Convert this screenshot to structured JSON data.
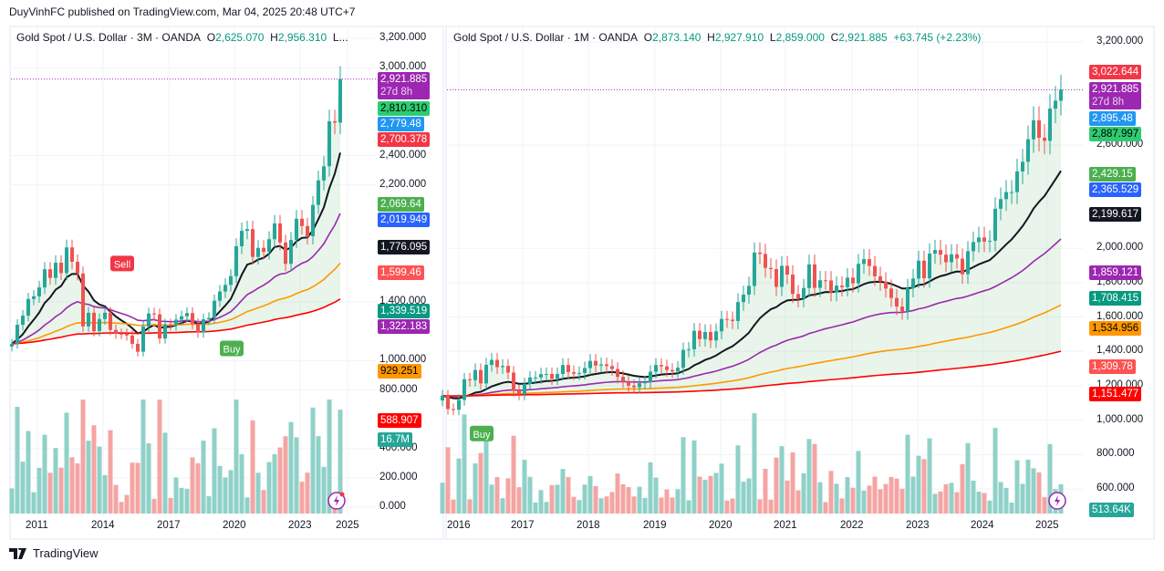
{
  "publisher_line": "DuyVinhFC published on TradingView.com, Mar 04, 2025 20:48 UTC+7",
  "footer": {
    "brand": "TradingView"
  },
  "colors": {
    "up": "#26a69a",
    "down": "#ef5350",
    "up_volume": "#8fd1c8",
    "down_volume": "#f4a5a3",
    "ema_fast": "#131722",
    "ema_mid": "#9c27b0",
    "ema_slow": "#ff9800",
    "ema_long": "#ff0000",
    "overlay": "#b57bd4",
    "current_price": "#9c27b0"
  },
  "icons": [
    "lightning-icon",
    "tradingview-logo-icon"
  ],
  "left": {
    "title": {
      "symbol": "Gold Spot / U.S. Dollar · 3M · OANDA",
      "o_key": "O",
      "o": "2,625.070",
      "h_key": "H",
      "h": "2,956.310",
      "rest": "L..."
    },
    "signals": [
      {
        "text": "Sell",
        "color": "#f23645",
        "index": 20,
        "price": 1660
      },
      {
        "text": "Buy",
        "color": "#4caf50",
        "index": 40,
        "price": 1080
      }
    ],
    "price_labels": [
      {
        "text": "2,921.885",
        "sub": "27d 8h",
        "bg": "#9c27b0",
        "fg": "#fff",
        "value": 2921.885
      },
      {
        "text": "2,810.310",
        "bg": "#2ecc71",
        "fg": "#000",
        "value": 2810.31
      },
      {
        "text": "2,779.48",
        "bg": "#2196f3",
        "fg": "#fff",
        "value": 2779.48
      },
      {
        "text": "2,700.378",
        "bg": "#f23645",
        "fg": "#fff",
        "value": 2700.378
      },
      {
        "text": "2,069.64",
        "bg": "#4caf50",
        "fg": "#fff",
        "value": 2069.64
      },
      {
        "text": "2,019.949",
        "bg": "#2962ff",
        "fg": "#fff",
        "value": 2019.949
      },
      {
        "text": "1,776.095",
        "bg": "#131722",
        "fg": "#fff",
        "value": 1776.095
      },
      {
        "text": "1,599.46",
        "bg": "#ff5252",
        "fg": "#fff",
        "value": 1599.46
      },
      {
        "text": "1,339.519",
        "bg": "#089981",
        "fg": "#fff",
        "value": 1339.519
      },
      {
        "text": "1,322.183",
        "bg": "#9c27b0",
        "fg": "#fff",
        "value": 1322.183
      },
      {
        "text": "929.251",
        "bg": "#ff9800",
        "fg": "#000",
        "value": 929.251
      },
      {
        "text": "588.907",
        "bg": "#ff0000",
        "fg": "#fff",
        "value": 588.907
      },
      {
        "text": "16.7M",
        "bg": "#26a69a",
        "fg": "#fff",
        "value": 460
      }
    ]
  },
  "right": {
    "title": {
      "symbol": "Gold Spot / U.S. Dollar · 1M · OANDA",
      "o_key": "O",
      "o": "2,873.140",
      "h_key": "H",
      "h": "2,927.910",
      "l_key": "L",
      "l": "2,859.000",
      "c_key": "C",
      "c": "2,921.885",
      "chg": "+63.745 (+2.23%)"
    },
    "signals": [
      {
        "text": "Buy",
        "color": "#4caf50",
        "index": 7,
        "price": 920
      }
    ],
    "price_labels": [
      {
        "text": "3,022.644",
        "bg": "#f23645",
        "fg": "#fff",
        "value": 3022.644
      },
      {
        "text": "2,921.885",
        "sub": "27d 8h",
        "bg": "#9c27b0",
        "fg": "#fff",
        "value": 2921.885
      },
      {
        "text": "2,895.48",
        "bg": "#2196f3",
        "fg": "#fff",
        "value": 2895.48
      },
      {
        "text": "2,887.997",
        "bg": "#2ecc71",
        "fg": "#000",
        "value": 2887.997
      },
      {
        "text": "2,429.15",
        "bg": "#4caf50",
        "fg": "#fff",
        "value": 2429.15
      },
      {
        "text": "2,365.529",
        "bg": "#2962ff",
        "fg": "#fff",
        "value": 2365.529
      },
      {
        "text": "2,199.617",
        "bg": "#131722",
        "fg": "#fff",
        "value": 2199.617
      },
      {
        "text": "1,859.121",
        "bg": "#9c27b0",
        "fg": "#fff",
        "value": 1859.121
      },
      {
        "text": "1,708.415",
        "bg": "#089981",
        "fg": "#fff",
        "value": 1708.415
      },
      {
        "text": "1,534.956",
        "bg": "#ff9800",
        "fg": "#000",
        "value": 1534.956
      },
      {
        "text": "1,309.78",
        "bg": "#ff5252",
        "fg": "#fff",
        "value": 1309.78
      },
      {
        "text": "1,151.477",
        "bg": "#ff0000",
        "fg": "#fff",
        "value": 1151.477
      },
      {
        "text": "513.64K",
        "bg": "#26a69a",
        "fg": "#fff",
        "value": 480
      }
    ]
  },
  "chart_data": [
    {
      "type": "candlestick",
      "interval": "3M",
      "start": "2010-Q1",
      "x_ticks": [
        "2011",
        "2014",
        "2017",
        "2020",
        "2023",
        "2025"
      ],
      "y_ticks": [
        "3,200.000",
        "3,000.000",
        "2,400.000",
        "2,200.000",
        "1,400.000",
        "1,000.000",
        "800.000",
        "400.000",
        "200.000",
        "0.000"
      ],
      "y_tick_values": [
        3200,
        3000,
        2400,
        2200,
        1400,
        1000,
        800,
        400,
        200,
        0
      ],
      "ylim": [
        0,
        3200
      ],
      "first_open": 1096,
      "closes": [
        1115,
        1245,
        1307,
        1421,
        1439,
        1500,
        1624,
        1565,
        1669,
        1598,
        1773,
        1675,
        1595,
        1234,
        1327,
        1202,
        1284,
        1327,
        1210,
        1184,
        1183,
        1172,
        1115,
        1061,
        1233,
        1322,
        1316,
        1151,
        1249,
        1242,
        1280,
        1303,
        1325,
        1252,
        1192,
        1282,
        1292,
        1409,
        1472,
        1517,
        1577,
        1781,
        1886,
        1898,
        1708,
        1770,
        1743,
        1829,
        1937,
        1807,
        1661,
        1824,
        1969,
        1919,
        1849,
        2063,
        2230,
        2327,
        2634,
        2625,
        2921.885
      ]
    },
    {
      "type": "candlestick",
      "interval": "1M",
      "start": "2015-10",
      "x_ticks": [
        "2016",
        "2017",
        "2018",
        "2019",
        "2020",
        "2021",
        "2022",
        "2023",
        "2024",
        "2025"
      ],
      "y_ticks": [
        "3,200.000",
        "2,600.000",
        "2,000.000",
        "1,800.000",
        "1,600.000",
        "1,400.000",
        "1,200.000",
        "1,000.000",
        "800.000",
        "600.000"
      ],
      "y_tick_values": [
        3200,
        2600,
        2000,
        1800,
        1600,
        1400,
        1200,
        1000,
        800,
        600
      ],
      "ylim": [
        500,
        3300
      ],
      "first_open": 1115,
      "closes": [
        1142,
        1065,
        1061,
        1118,
        1238,
        1233,
        1292,
        1214,
        1322,
        1351,
        1309,
        1316,
        1277,
        1173,
        1151,
        1211,
        1249,
        1249,
        1268,
        1269,
        1242,
        1269,
        1321,
        1280,
        1271,
        1275,
        1303,
        1345,
        1318,
        1325,
        1315,
        1298,
        1252,
        1224,
        1201,
        1192,
        1215,
        1222,
        1282,
        1321,
        1313,
        1292,
        1284,
        1305,
        1409,
        1413,
        1520,
        1472,
        1513,
        1464,
        1517,
        1589,
        1585,
        1577,
        1687,
        1730,
        1781,
        1975,
        1967,
        1886,
        1879,
        1776,
        1898,
        1847,
        1734,
        1708,
        1769,
        1906,
        1770,
        1814,
        1813,
        1743,
        1783,
        1774,
        1829,
        1796,
        1909,
        1937,
        1897,
        1837,
        1807,
        1766,
        1711,
        1661,
        1633,
        1768,
        1824,
        1928,
        1826,
        1969,
        1990,
        1963,
        1919,
        1965,
        1940,
        1849,
        1983,
        2036,
        2063,
        2039,
        2044,
        2230,
        2286,
        2327,
        2327,
        2447,
        2503,
        2634,
        2744,
        2643,
        2625,
        2812,
        2858,
        2921.885
      ]
    }
  ]
}
